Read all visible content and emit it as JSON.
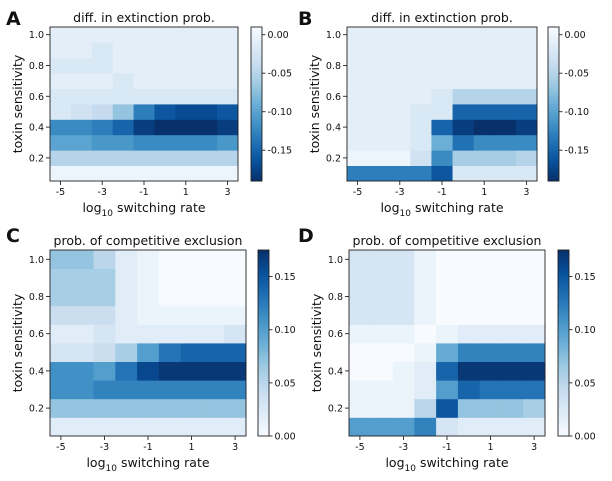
{
  "chart_data": [
    {
      "type": "heatmap",
      "panel": "A",
      "title": "diff. in extinction prob.",
      "xlabel": "log10 switching rate",
      "ylabel": "toxin sensitivity",
      "x": [
        -5,
        -4,
        -3,
        -2,
        -1,
        0,
        1,
        2,
        3
      ],
      "y": [
        0.1,
        0.2,
        0.3,
        0.4,
        0.5,
        0.6,
        0.7,
        0.8,
        0.9,
        1.0
      ],
      "xticks": [
        -5,
        -3,
        -1,
        1,
        3
      ],
      "yticks": [
        0.2,
        0.4,
        0.6,
        0.8,
        1.0
      ],
      "colormap": "Blues_r",
      "clim": [
        -0.19,
        0.01
      ],
      "colorbar_ticks": [
        "0.00",
        "-0.05",
        "-0.10",
        "-0.15"
      ],
      "colorbar_tick_values": [
        0.0,
        -0.05,
        -0.1,
        -0.15
      ],
      "values": [
        [
          0.0,
          0.0,
          0.0,
          0.0,
          0.0,
          0.0,
          0.0,
          0.0,
          0.0
        ],
        [
          -0.05,
          -0.05,
          -0.05,
          -0.05,
          -0.05,
          -0.05,
          -0.05,
          -0.05,
          -0.05
        ],
        [
          -0.1,
          -0.1,
          -0.11,
          -0.11,
          -0.12,
          -0.12,
          -0.12,
          -0.12,
          -0.11
        ],
        [
          -0.12,
          -0.12,
          -0.13,
          -0.15,
          -0.18,
          -0.19,
          -0.19,
          -0.19,
          -0.18
        ],
        [
          -0.02,
          -0.03,
          -0.04,
          -0.07,
          -0.13,
          -0.16,
          -0.17,
          -0.17,
          -0.16
        ],
        [
          -0.02,
          -0.02,
          -0.02,
          -0.02,
          -0.02,
          -0.02,
          -0.02,
          -0.02,
          -0.02
        ],
        [
          -0.01,
          -0.01,
          -0.01,
          -0.02,
          -0.01,
          -0.01,
          -0.01,
          -0.01,
          -0.01
        ],
        [
          -0.02,
          -0.02,
          -0.02,
          -0.01,
          -0.01,
          -0.01,
          -0.01,
          -0.01,
          -0.01
        ],
        [
          -0.01,
          -0.01,
          -0.02,
          -0.01,
          -0.01,
          -0.01,
          -0.01,
          -0.01,
          -0.01
        ],
        [
          -0.01,
          -0.01,
          -0.01,
          -0.01,
          -0.01,
          -0.01,
          -0.01,
          -0.01,
          -0.01
        ]
      ]
    },
    {
      "type": "heatmap",
      "panel": "B",
      "title": "diff. in extinction prob.",
      "xlabel": "log10 switching rate",
      "ylabel": "toxin sensitivity",
      "x": [
        -5,
        -4,
        -3,
        -2,
        -1,
        0,
        1,
        2,
        3
      ],
      "y": [
        0.1,
        0.2,
        0.3,
        0.4,
        0.5,
        0.6,
        0.7,
        0.8,
        0.9,
        1.0
      ],
      "xticks": [
        -5,
        -3,
        -1,
        1,
        3
      ],
      "yticks": [
        0.2,
        0.4,
        0.6,
        0.8,
        1.0
      ],
      "colormap": "Blues_r",
      "clim": [
        -0.19,
        0.01
      ],
      "colorbar_ticks": [
        "0.00",
        "-0.05",
        "-0.10",
        "-0.15"
      ],
      "colorbar_tick_values": [
        0.0,
        -0.05,
        -0.1,
        -0.15
      ],
      "values": [
        [
          -0.13,
          -0.13,
          -0.13,
          -0.13,
          -0.16,
          -0.02,
          -0.02,
          -0.02,
          -0.02
        ],
        [
          0.0,
          0.0,
          0.0,
          -0.03,
          -0.12,
          -0.06,
          -0.06,
          -0.06,
          -0.05
        ],
        [
          -0.01,
          -0.01,
          -0.01,
          -0.02,
          -0.09,
          -0.14,
          -0.12,
          -0.12,
          -0.12
        ],
        [
          -0.01,
          -0.01,
          -0.01,
          -0.02,
          -0.15,
          -0.18,
          -0.19,
          -0.19,
          -0.18
        ],
        [
          -0.01,
          -0.01,
          -0.01,
          -0.02,
          -0.02,
          -0.15,
          -0.15,
          -0.15,
          -0.15
        ],
        [
          -0.01,
          -0.01,
          -0.01,
          -0.01,
          -0.02,
          -0.05,
          -0.05,
          -0.05,
          -0.05
        ],
        [
          -0.01,
          -0.01,
          -0.01,
          -0.01,
          -0.01,
          -0.01,
          -0.01,
          -0.01,
          -0.01
        ],
        [
          -0.01,
          -0.01,
          -0.01,
          -0.01,
          -0.01,
          -0.01,
          -0.01,
          -0.01,
          -0.01
        ],
        [
          -0.01,
          -0.01,
          -0.01,
          -0.01,
          -0.01,
          -0.01,
          -0.01,
          -0.01,
          -0.01
        ],
        [
          -0.01,
          -0.01,
          -0.01,
          -0.01,
          -0.01,
          -0.01,
          -0.01,
          -0.01,
          -0.01
        ]
      ]
    },
    {
      "type": "heatmap",
      "panel": "C",
      "title": "prob. of competitive exclusion",
      "xlabel": "log10 switching rate",
      "ylabel": "toxin sensitivity",
      "x": [
        -5,
        -4,
        -3,
        -2,
        -1,
        0,
        1,
        2,
        3
      ],
      "y": [
        0.1,
        0.2,
        0.3,
        0.4,
        0.5,
        0.6,
        0.7,
        0.8,
        0.9,
        1.0
      ],
      "xticks": [
        -5,
        -3,
        -1,
        1,
        3
      ],
      "yticks": [
        0.2,
        0.4,
        0.6,
        0.8,
        1.0
      ],
      "colormap": "Blues",
      "clim": [
        0.0,
        0.175
      ],
      "colorbar_ticks": [
        "0.15",
        "0.10",
        "0.05",
        "0.00"
      ],
      "colorbar_tick_values": [
        0.15,
        0.1,
        0.05,
        0.0
      ],
      "values": [
        [
          0.02,
          0.02,
          0.02,
          0.02,
          0.02,
          0.02,
          0.02,
          0.02,
          0.02
        ],
        [
          0.07,
          0.07,
          0.07,
          0.07,
          0.07,
          0.07,
          0.07,
          0.07,
          0.07
        ],
        [
          0.11,
          0.11,
          0.12,
          0.12,
          0.12,
          0.12,
          0.12,
          0.12,
          0.12
        ],
        [
          0.11,
          0.11,
          0.1,
          0.13,
          0.16,
          0.17,
          0.17,
          0.17,
          0.17
        ],
        [
          0.03,
          0.03,
          0.04,
          0.06,
          0.1,
          0.13,
          0.14,
          0.14,
          0.14
        ],
        [
          0.02,
          0.02,
          0.03,
          0.02,
          0.02,
          0.02,
          0.02,
          0.02,
          0.03
        ],
        [
          0.04,
          0.04,
          0.04,
          0.02,
          0.01,
          0.01,
          0.01,
          0.01,
          0.01
        ],
        [
          0.06,
          0.06,
          0.06,
          0.02,
          0.01,
          0.0,
          0.0,
          0.0,
          0.0
        ],
        [
          0.06,
          0.06,
          0.06,
          0.02,
          0.01,
          0.0,
          0.0,
          0.0,
          0.0
        ],
        [
          0.07,
          0.07,
          0.05,
          0.02,
          0.01,
          0.0,
          0.0,
          0.0,
          0.0
        ]
      ]
    },
    {
      "type": "heatmap",
      "panel": "D",
      "title": "prob. of competitive exclusion",
      "xlabel": "log10 switching rate",
      "ylabel": "toxin sensitivity",
      "x": [
        -5,
        -4,
        -3,
        -2,
        -1,
        0,
        1,
        2,
        3
      ],
      "y": [
        0.1,
        0.2,
        0.3,
        0.4,
        0.5,
        0.6,
        0.7,
        0.8,
        0.9,
        1.0
      ],
      "xticks": [
        -5,
        -3,
        -1,
        1,
        3
      ],
      "yticks": [
        0.2,
        0.4,
        0.6,
        0.8,
        1.0
      ],
      "colormap": "Blues",
      "clim": [
        0.0,
        0.175
      ],
      "colorbar_ticks": [
        "0.15",
        "0.10",
        "0.05",
        "0.00"
      ],
      "colorbar_tick_values": [
        0.15,
        0.1,
        0.05,
        0.0
      ],
      "values": [
        [
          0.1,
          0.1,
          0.1,
          0.12,
          0.03,
          0.02,
          0.02,
          0.02,
          0.02
        ],
        [
          0.01,
          0.01,
          0.01,
          0.05,
          0.15,
          0.07,
          0.07,
          0.07,
          0.06
        ],
        [
          0.01,
          0.01,
          0.01,
          0.02,
          0.1,
          0.14,
          0.13,
          0.13,
          0.13
        ],
        [
          0.0,
          0.0,
          0.01,
          0.02,
          0.14,
          0.17,
          0.17,
          0.17,
          0.17
        ],
        [
          0.0,
          0.0,
          0.0,
          0.01,
          0.09,
          0.12,
          0.12,
          0.12,
          0.12
        ],
        [
          0.01,
          0.01,
          0.01,
          0.0,
          0.01,
          0.02,
          0.02,
          0.02,
          0.02
        ],
        [
          0.03,
          0.03,
          0.03,
          0.01,
          0.0,
          0.0,
          0.0,
          0.0,
          0.0
        ],
        [
          0.03,
          0.03,
          0.03,
          0.01,
          0.0,
          0.0,
          0.0,
          0.0,
          0.0
        ],
        [
          0.03,
          0.03,
          0.03,
          0.01,
          0.0,
          0.0,
          0.0,
          0.0,
          0.0
        ],
        [
          0.03,
          0.03,
          0.03,
          0.01,
          0.0,
          0.0,
          0.0,
          0.0,
          0.0
        ]
      ]
    }
  ]
}
